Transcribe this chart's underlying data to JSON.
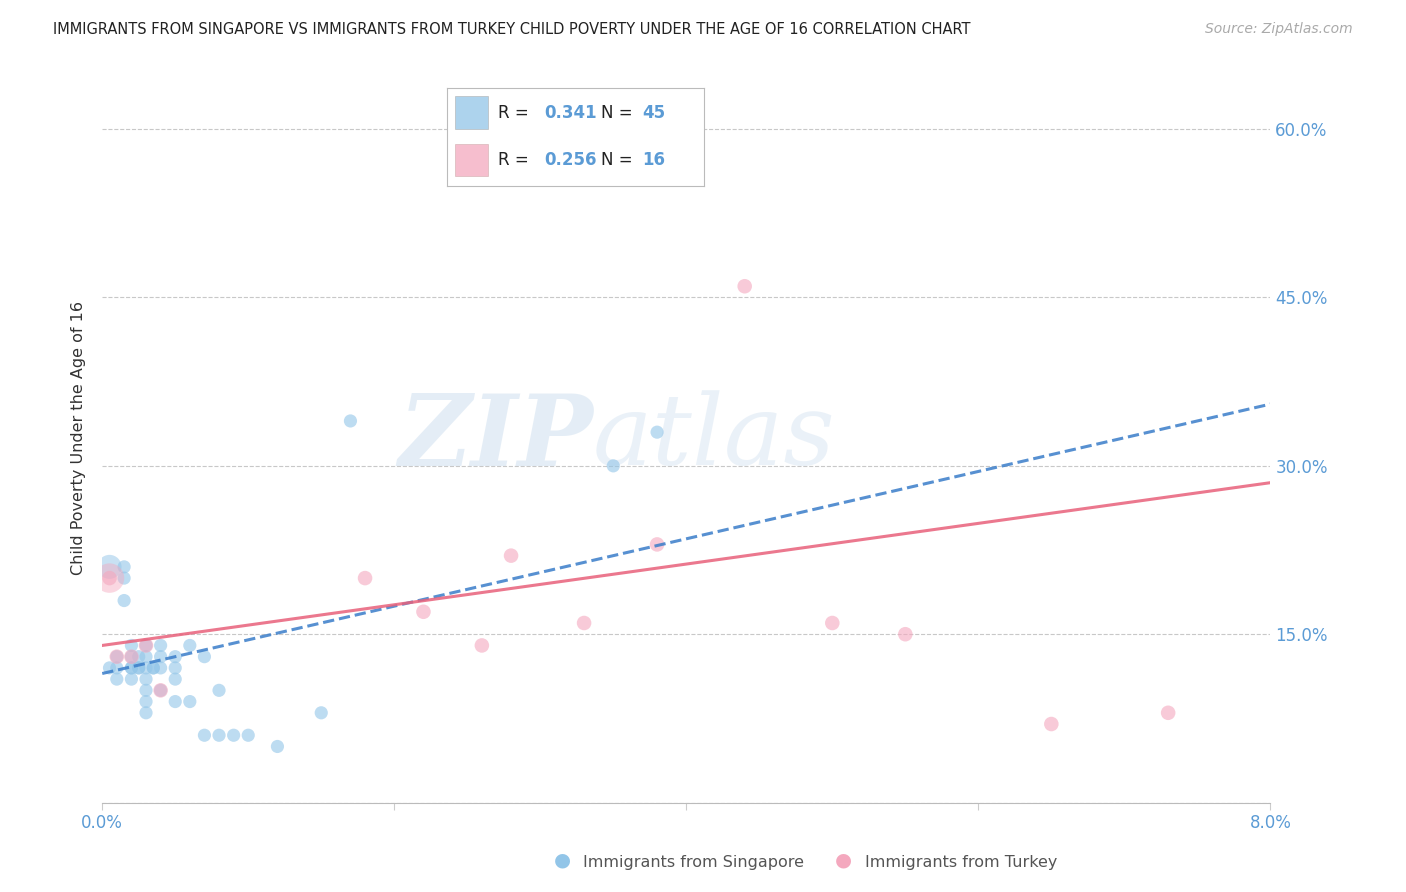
{
  "title": "IMMIGRANTS FROM SINGAPORE VS IMMIGRANTS FROM TURKEY CHILD POVERTY UNDER THE AGE OF 16 CORRELATION CHART",
  "source": "Source: ZipAtlas.com",
  "ylabel": "Child Poverty Under the Age of 16",
  "xlim": [
    0.0,
    0.08
  ],
  "ylim": [
    0.0,
    0.65
  ],
  "xticks": [
    0.0,
    0.02,
    0.04,
    0.06,
    0.08
  ],
  "yticks": [
    0.0,
    0.15,
    0.3,
    0.45,
    0.6
  ],
  "sg_color": "#92C5E8",
  "tr_color": "#F4A8BE",
  "sg_line_color": "#3A7DC9",
  "tr_line_color": "#E8607A",
  "sg_R": 0.341,
  "sg_N": 45,
  "tr_R": 0.256,
  "tr_N": 16,
  "sg_x": [
    0.0005,
    0.001,
    0.001,
    0.001,
    0.0015,
    0.0015,
    0.0015,
    0.002,
    0.002,
    0.002,
    0.002,
    0.002,
    0.0025,
    0.0025,
    0.0025,
    0.003,
    0.003,
    0.003,
    0.003,
    0.003,
    0.003,
    0.003,
    0.0035,
    0.0035,
    0.004,
    0.004,
    0.004,
    0.004,
    0.005,
    0.005,
    0.005,
    0.005,
    0.006,
    0.006,
    0.007,
    0.007,
    0.008,
    0.008,
    0.009,
    0.01,
    0.012,
    0.015,
    0.017,
    0.035,
    0.038
  ],
  "sg_y": [
    0.12,
    0.13,
    0.12,
    0.11,
    0.21,
    0.2,
    0.18,
    0.14,
    0.13,
    0.12,
    0.12,
    0.11,
    0.13,
    0.12,
    0.12,
    0.14,
    0.13,
    0.12,
    0.11,
    0.1,
    0.09,
    0.08,
    0.12,
    0.12,
    0.14,
    0.13,
    0.12,
    0.1,
    0.13,
    0.12,
    0.11,
    0.09,
    0.14,
    0.09,
    0.13,
    0.06,
    0.1,
    0.06,
    0.06,
    0.06,
    0.05,
    0.08,
    0.34,
    0.3,
    0.33
  ],
  "sg_large_x": [
    0.0005
  ],
  "sg_large_y": [
    0.21
  ],
  "tr_x": [
    0.0005,
    0.001,
    0.002,
    0.003,
    0.004,
    0.018,
    0.022,
    0.026,
    0.028,
    0.033,
    0.038,
    0.044,
    0.05,
    0.055,
    0.065,
    0.073
  ],
  "tr_y": [
    0.2,
    0.13,
    0.13,
    0.14,
    0.1,
    0.2,
    0.17,
    0.14,
    0.22,
    0.16,
    0.23,
    0.46,
    0.16,
    0.15,
    0.07,
    0.08
  ],
  "tr_large_x": [
    0.0005
  ],
  "tr_large_y": [
    0.2
  ],
  "watermark_zip": "ZIP",
  "watermark_atlas": "atlas"
}
